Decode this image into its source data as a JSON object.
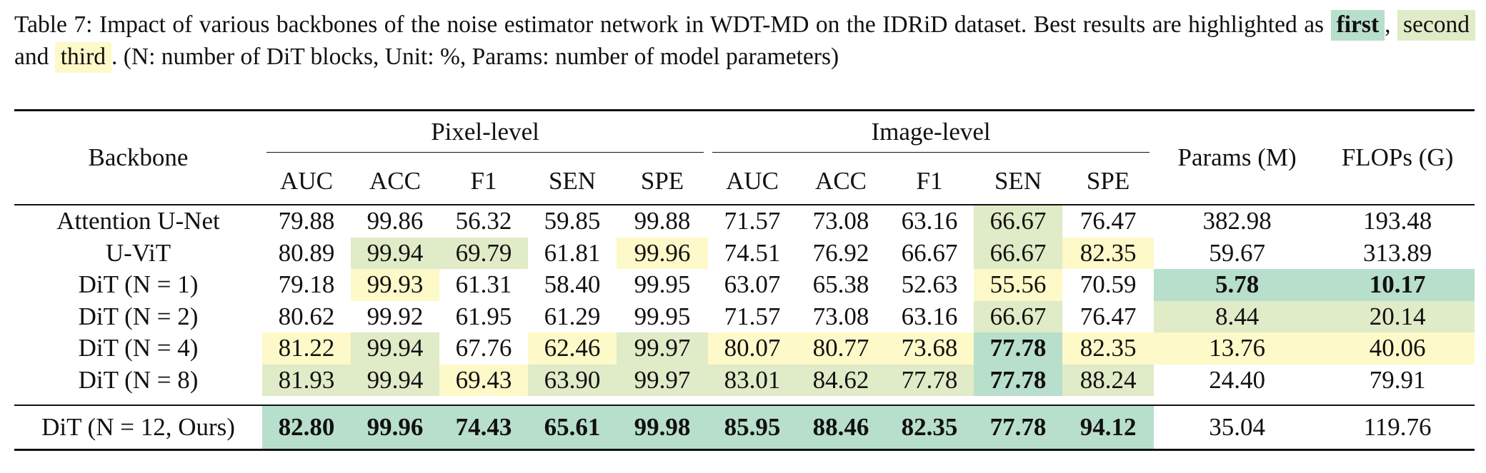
{
  "caption": {
    "label": "Table 7:",
    "text_before": "Impact of various backbones of the noise estimator network in WDT-MD on the IDRiD dataset. Best results are highlighted as",
    "first": "first",
    "sep1": ",",
    "second": "second",
    "and": "and",
    "third": "third",
    "text_after": ". (N: number of DiT blocks, Unit: %, Params: number of model parameters)"
  },
  "table": {
    "backbone_header": "Backbone",
    "pixel_header": "Pixel-level",
    "image_header": "Image-level",
    "params_header": "Params (M)",
    "flops_header": "FLOPs (G)",
    "metric_headers": [
      "AUC",
      "ACC",
      "F1",
      "SEN",
      "SPE",
      "AUC",
      "ACC",
      "F1",
      "SEN",
      "SPE"
    ],
    "rows": [
      {
        "backbone": "Attention U-Net",
        "values": [
          "79.88",
          "99.86",
          "56.32",
          "59.85",
          "99.88",
          "71.57",
          "73.08",
          "63.16",
          "66.67",
          "76.47",
          "382.98",
          "193.48"
        ],
        "rank": [
          "",
          "",
          "",
          "",
          "",
          "",
          "",
          "",
          "second",
          "",
          "",
          ""
        ]
      },
      {
        "backbone": "U-ViT",
        "values": [
          "80.89",
          "99.94",
          "69.79",
          "61.81",
          "99.96",
          "74.51",
          "76.92",
          "66.67",
          "66.67",
          "82.35",
          "59.67",
          "313.89"
        ],
        "rank": [
          "",
          "second",
          "second",
          "",
          "third",
          "",
          "",
          "",
          "second",
          "third",
          "",
          ""
        ]
      },
      {
        "backbone": "DiT (N = 1)",
        "values": [
          "79.18",
          "99.93",
          "61.31",
          "58.40",
          "99.95",
          "63.07",
          "65.38",
          "52.63",
          "55.56",
          "70.59",
          "5.78",
          "10.17"
        ],
        "rank": [
          "",
          "third",
          "",
          "",
          "",
          "",
          "",
          "",
          "third",
          "",
          "first",
          "first"
        ]
      },
      {
        "backbone": "DiT (N = 2)",
        "values": [
          "80.62",
          "99.92",
          "61.95",
          "61.29",
          "99.95",
          "71.57",
          "73.08",
          "63.16",
          "66.67",
          "76.47",
          "8.44",
          "20.14"
        ],
        "rank": [
          "",
          "",
          "",
          "",
          "",
          "",
          "",
          "",
          "second",
          "",
          "second",
          "second"
        ]
      },
      {
        "backbone": "DiT (N = 4)",
        "values": [
          "81.22",
          "99.94",
          "67.76",
          "62.46",
          "99.97",
          "80.07",
          "80.77",
          "73.68",
          "77.78",
          "82.35",
          "13.76",
          "40.06"
        ],
        "rank": [
          "third",
          "second",
          "",
          "third",
          "second",
          "third",
          "third",
          "third",
          "first",
          "third",
          "third",
          "third"
        ]
      },
      {
        "backbone": "DiT (N = 8)",
        "values": [
          "81.93",
          "99.94",
          "69.43",
          "63.90",
          "99.97",
          "83.01",
          "84.62",
          "77.78",
          "77.78",
          "88.24",
          "24.40",
          "79.91"
        ],
        "rank": [
          "second",
          "second",
          "third",
          "second",
          "second",
          "second",
          "second",
          "second",
          "first",
          "second",
          "",
          ""
        ]
      },
      {
        "backbone": "DiT (N = 12, Ours)",
        "values": [
          "82.80",
          "99.96",
          "74.43",
          "65.61",
          "99.98",
          "85.95",
          "88.46",
          "82.35",
          "77.78",
          "94.12",
          "35.04",
          "119.76"
        ],
        "rank": [
          "first",
          "first",
          "first",
          "first",
          "first",
          "first",
          "first",
          "first",
          "first",
          "first",
          "",
          ""
        ]
      }
    ]
  },
  "colors": {
    "first": "#b8dfcb",
    "second": "#e0ebc7",
    "third": "#fdf9c8"
  }
}
